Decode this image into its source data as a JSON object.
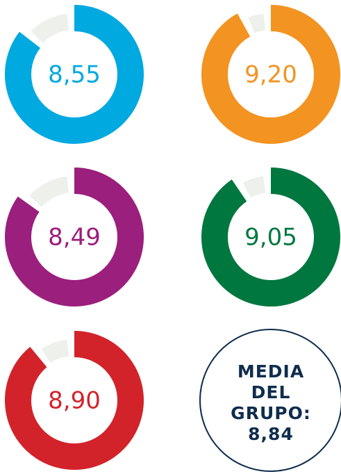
{
  "chart_data": [
    {
      "type": "donut",
      "values": [
        8.55
      ],
      "value_labels": [
        "8,55"
      ],
      "ylim": [
        0,
        10
      ],
      "color": "#00a9e0"
    },
    {
      "type": "donut",
      "values": [
        9.2
      ],
      "value_labels": [
        "9,20"
      ],
      "ylim": [
        0,
        10
      ],
      "color": "#f39321"
    },
    {
      "type": "donut",
      "values": [
        8.49
      ],
      "value_labels": [
        "8,49"
      ],
      "ylim": [
        0,
        10
      ],
      "color": "#9b1f7c"
    },
    {
      "type": "donut",
      "values": [
        9.05
      ],
      "value_labels": [
        "9,05"
      ],
      "ylim": [
        0,
        10
      ],
      "color": "#00773f"
    },
    {
      "type": "donut",
      "values": [
        8.9
      ],
      "value_labels": [
        "8,90"
      ],
      "ylim": [
        0,
        10
      ],
      "color": "#d2232a"
    }
  ],
  "summary": {
    "lines": [
      "MEDIA",
      "DEL",
      "GRUPO:"
    ],
    "value": 8.84,
    "value_label": "8,84",
    "color": "#0f2d4c"
  }
}
